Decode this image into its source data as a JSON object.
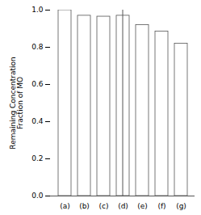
{
  "chart_data": {
    "type": "bar",
    "categories": [
      "(a)",
      "(b)",
      "(c)",
      "(d)",
      "(e)",
      "(f)",
      "(g)"
    ],
    "values": [
      1.0,
      0.97,
      0.965,
      0.97,
      0.92,
      0.885,
      0.82
    ],
    "color": "#ffffff",
    "ylabel": "Remaining Concentration\nFraction of MO",
    "ylim": [
      0.0,
      1.0
    ],
    "yticks": [
      {
        "value": 0.0,
        "label": "0.0"
      },
      0.2,
      0.4,
      0.6,
      0.8,
      {
        "value": 1.0,
        "label": "1.0"
      }
    ],
    "grid": false
  }
}
